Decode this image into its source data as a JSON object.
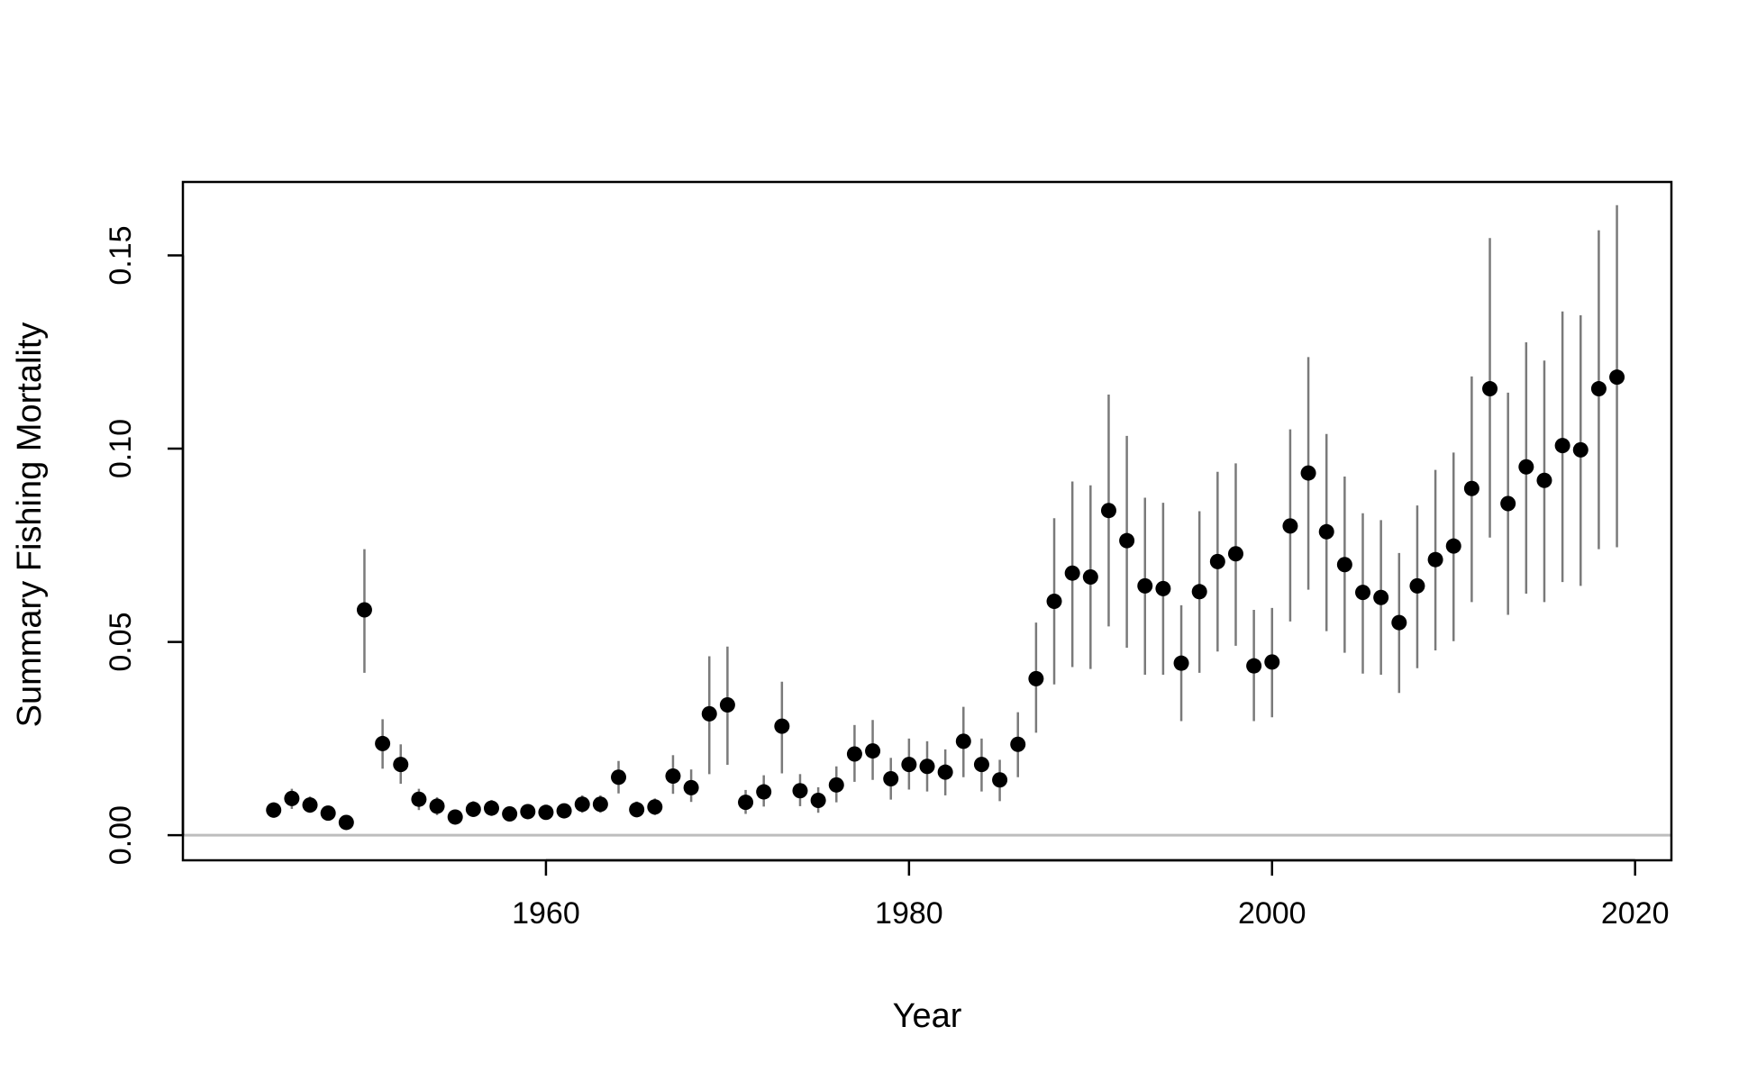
{
  "chart_data": {
    "type": "scatter",
    "title": "",
    "xlabel": "Year",
    "ylabel": "Summary Fishing Mortality",
    "xlim": [
      1940,
      2022
    ],
    "ylim": [
      -0.0065,
      0.169
    ],
    "x_ticks": [
      1960,
      1980,
      2000,
      2020
    ],
    "x_tick_labels": [
      "1960",
      "1980",
      "2000",
      "2020"
    ],
    "y_ticks": [
      0.0,
      0.05,
      0.1,
      0.15
    ],
    "y_tick_labels": [
      "0.00",
      "0.05",
      "0.10",
      "0.15"
    ],
    "reference_line": 0.0,
    "grid": false,
    "colors": {
      "point": "#000000",
      "error_bar": "#7a7a7a",
      "reference_line": "#bdbdbd",
      "axis": "#000000"
    },
    "series": [
      {
        "x": [
          1945,
          1946,
          1947,
          1948,
          1949,
          1950,
          1951,
          1952,
          1953,
          1954,
          1955,
          1956,
          1957,
          1958,
          1959,
          1960,
          1961,
          1962,
          1963,
          1964,
          1965,
          1966,
          1967,
          1968,
          1969,
          1970,
          1971,
          1972,
          1973,
          1974,
          1975,
          1976,
          1977,
          1978,
          1979,
          1980,
          1981,
          1982,
          1983,
          1984,
          1985,
          1986,
          1987,
          1988,
          1989,
          1990,
          1991,
          1992,
          1993,
          1994,
          1995,
          1996,
          1997,
          1998,
          1999,
          2000,
          2001,
          2002,
          2003,
          2004,
          2005,
          2006,
          2007,
          2008,
          2009,
          2010,
          2011,
          2012,
          2013,
          2014,
          2015,
          2016,
          2017,
          2018,
          2019
        ],
        "y": [
          0.0065,
          0.0095,
          0.0078,
          0.0057,
          0.0033,
          0.0583,
          0.0237,
          0.0183,
          0.0093,
          0.0075,
          0.0047,
          0.0067,
          0.007,
          0.0055,
          0.0061,
          0.0059,
          0.0063,
          0.008,
          0.008,
          0.015,
          0.0066,
          0.0073,
          0.0153,
          0.0123,
          0.0314,
          0.0337,
          0.0085,
          0.0112,
          0.0282,
          0.0115,
          0.009,
          0.013,
          0.021,
          0.0218,
          0.0146,
          0.0183,
          0.0178,
          0.0163,
          0.0243,
          0.0183,
          0.0143,
          0.0235,
          0.0405,
          0.0605,
          0.0678,
          0.0668,
          0.084,
          0.0762,
          0.0645,
          0.0638,
          0.0445,
          0.063,
          0.0708,
          0.0728,
          0.0438,
          0.0448,
          0.08,
          0.0937,
          0.0785,
          0.07,
          0.0628,
          0.0615,
          0.055,
          0.0645,
          0.0713,
          0.0748,
          0.0897,
          0.1155,
          0.0858,
          0.0953,
          0.0918,
          0.1008,
          0.0997,
          0.1155,
          0.1185
        ],
        "lower": [
          0.0045,
          0.0068,
          0.0058,
          0.0042,
          0.0022,
          0.042,
          0.0172,
          0.0133,
          0.0065,
          0.0052,
          0.0032,
          0.0047,
          0.005,
          0.004,
          0.0044,
          0.0042,
          0.0045,
          0.0058,
          0.0058,
          0.0108,
          0.0046,
          0.0052,
          0.0107,
          0.0086,
          0.0158,
          0.0182,
          0.0055,
          0.0074,
          0.016,
          0.0075,
          0.0058,
          0.0085,
          0.0138,
          0.0143,
          0.0092,
          0.0118,
          0.0113,
          0.0103,
          0.015,
          0.0113,
          0.0088,
          0.015,
          0.0265,
          0.039,
          0.0435,
          0.043,
          0.054,
          0.0485,
          0.0415,
          0.0415,
          0.0295,
          0.042,
          0.0475,
          0.049,
          0.0295,
          0.0305,
          0.0553,
          0.0635,
          0.0528,
          0.0472,
          0.0418,
          0.0415,
          0.0368,
          0.0432,
          0.0478,
          0.0502,
          0.0603,
          0.077,
          0.057,
          0.0625,
          0.0603,
          0.0655,
          0.0645,
          0.074,
          0.0745
        ],
        "upper": [
          0.0085,
          0.012,
          0.01,
          0.0074,
          0.0045,
          0.074,
          0.03,
          0.0235,
          0.012,
          0.0098,
          0.0062,
          0.0088,
          0.0091,
          0.0072,
          0.008,
          0.0077,
          0.0082,
          0.0103,
          0.0103,
          0.0192,
          0.0087,
          0.0095,
          0.0207,
          0.017,
          0.0463,
          0.0488,
          0.0117,
          0.0155,
          0.0397,
          0.0158,
          0.0124,
          0.0178,
          0.0285,
          0.0298,
          0.02,
          0.025,
          0.0243,
          0.0222,
          0.0332,
          0.025,
          0.0195,
          0.0318,
          0.055,
          0.082,
          0.0915,
          0.0905,
          0.114,
          0.1033,
          0.0873,
          0.086,
          0.0595,
          0.0838,
          0.094,
          0.0962,
          0.0583,
          0.0588,
          0.105,
          0.1237,
          0.1038,
          0.0928,
          0.0833,
          0.0815,
          0.073,
          0.0853,
          0.0945,
          0.099,
          0.1187,
          0.1545,
          0.1145,
          0.1275,
          0.1228,
          0.1355,
          0.1345,
          0.1565,
          0.163
        ]
      }
    ]
  }
}
